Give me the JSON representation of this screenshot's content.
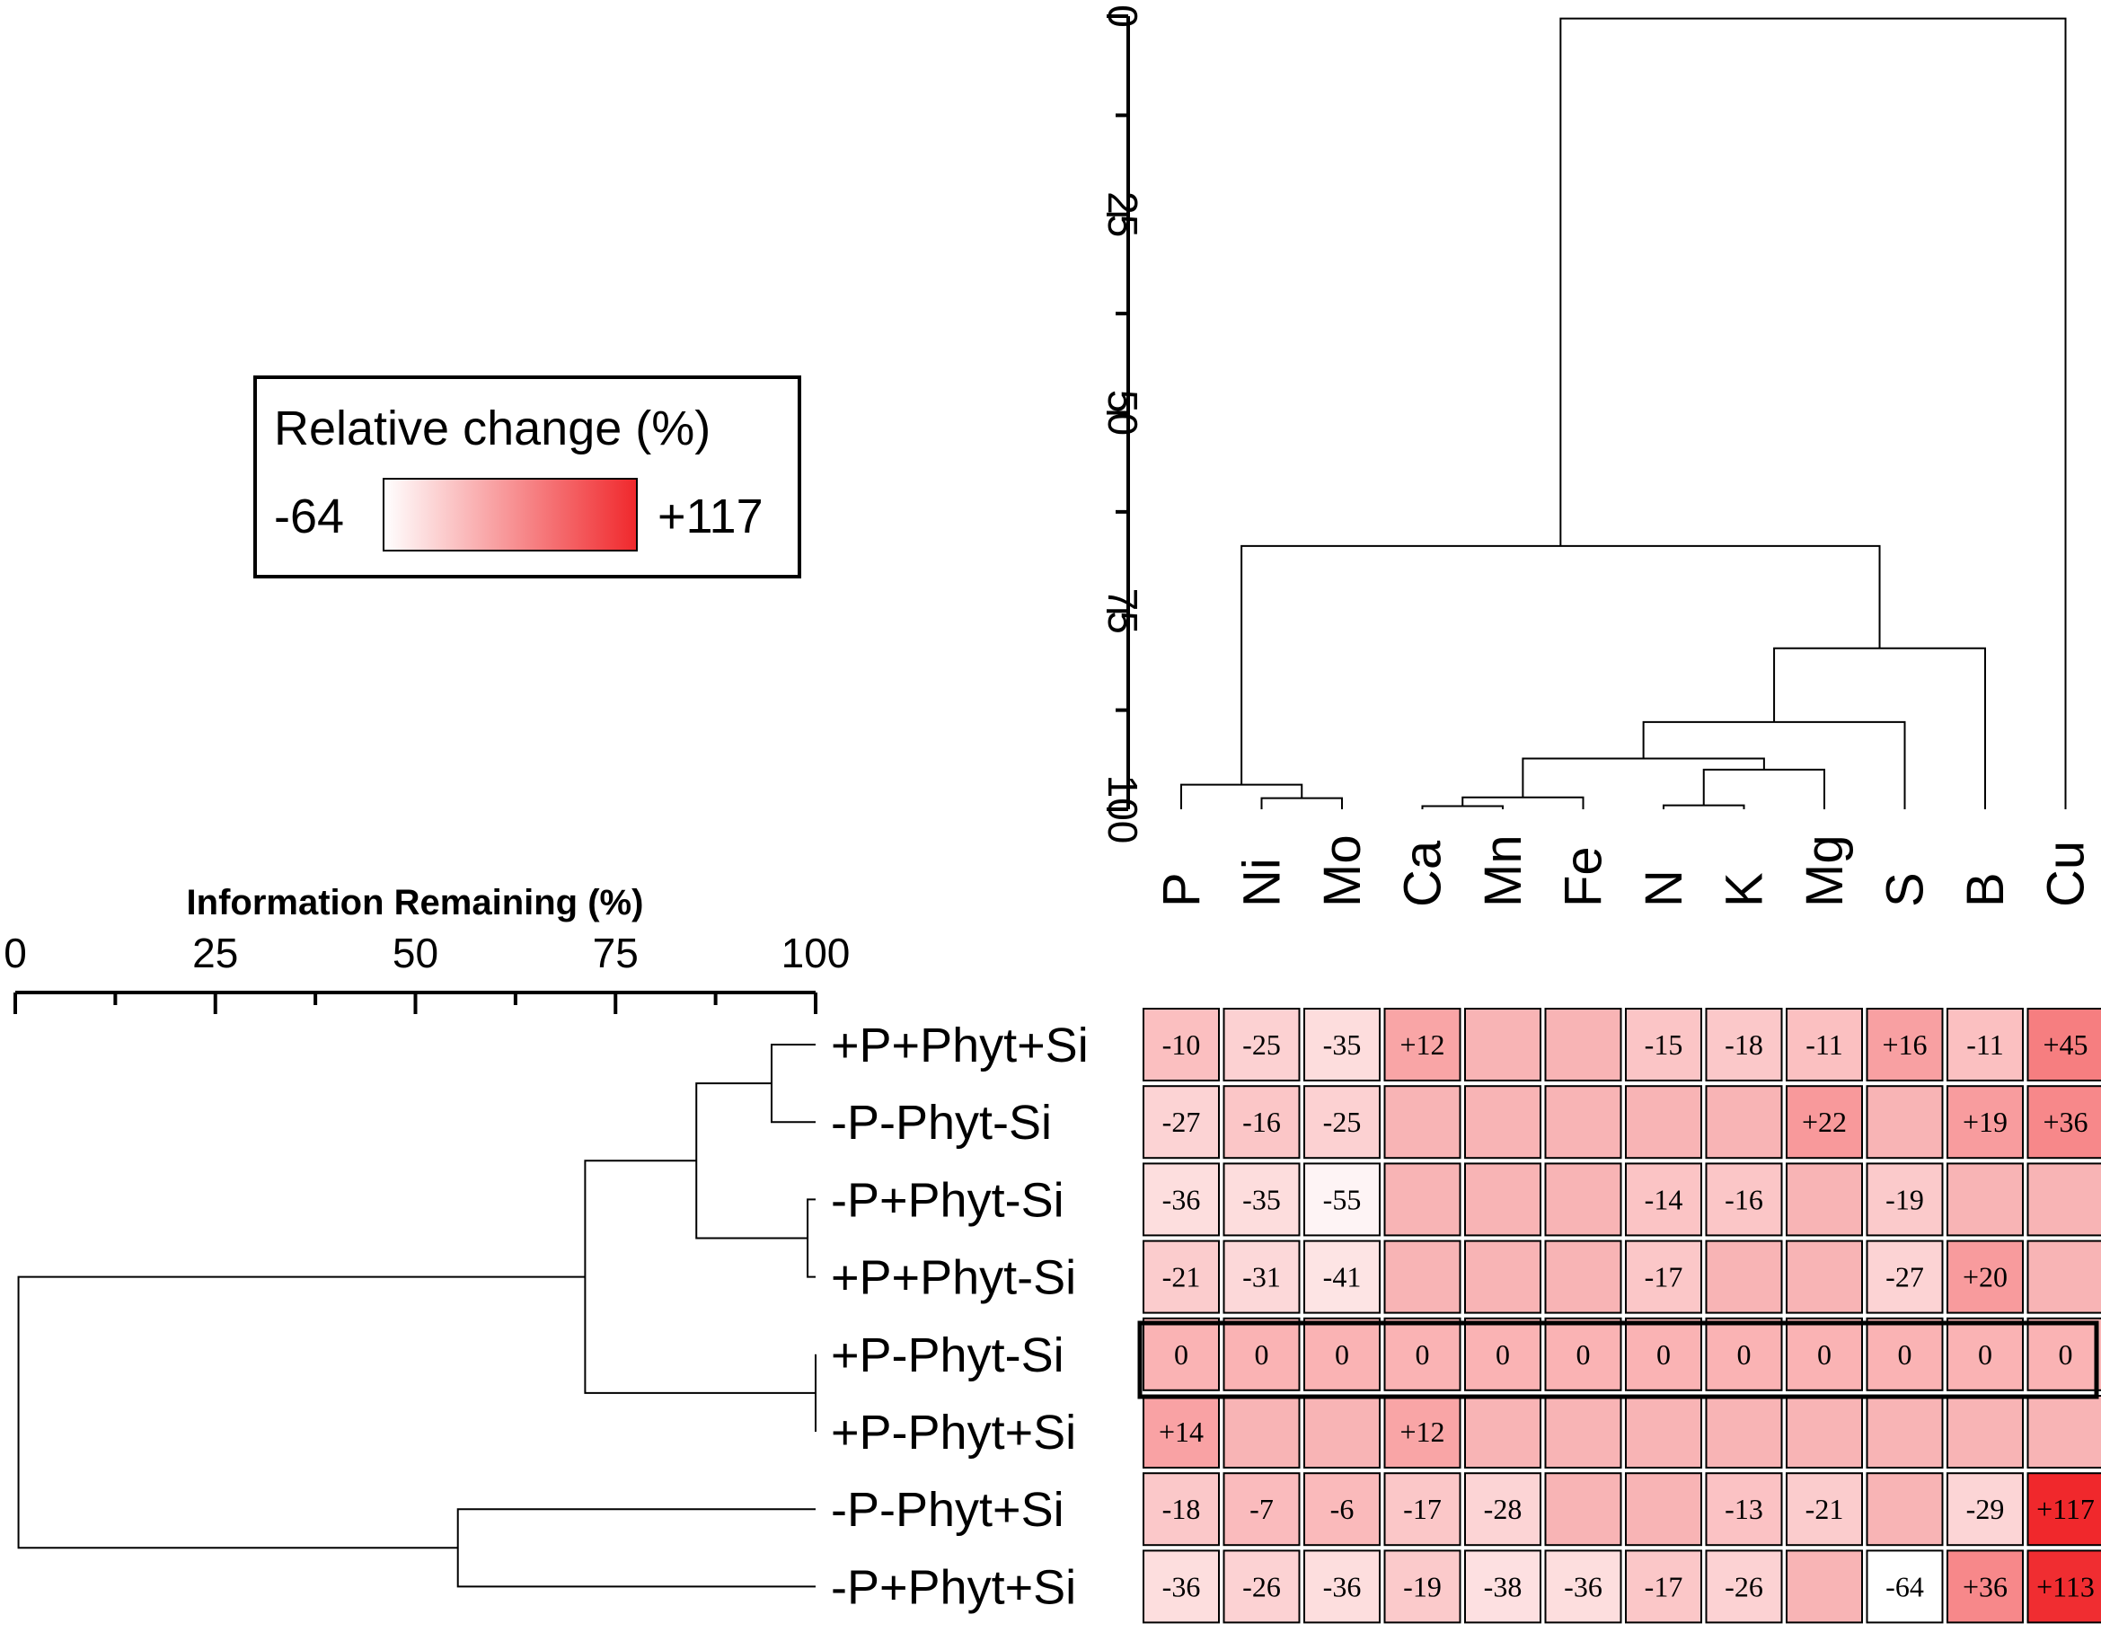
{
  "chart_data": {
    "type": "heatmap",
    "legend": {
      "title": "Relative change (%)",
      "min_label": "-64",
      "max_label": "+117",
      "min_value": -64,
      "max_value": 117,
      "color_low": "#ffffff",
      "color_high": "#f0282c"
    },
    "colors": {
      "no_label_fill": "#f8b4b5",
      "line": "#000000"
    },
    "columns": [
      "P",
      "Ni",
      "Mo",
      "Ca",
      "Mn",
      "Fe",
      "N",
      "K",
      "Mg",
      "S",
      "B",
      "Cu"
    ],
    "rows": [
      {
        "label": "+P+Phyt+Si",
        "cells": [
          "-10",
          "-25",
          "-35",
          "+12",
          "",
          "",
          "-15",
          "-18",
          "-11",
          "+16",
          "-11",
          "+45"
        ]
      },
      {
        "label": "-P-Phyt-Si",
        "cells": [
          "-27",
          "-16",
          "-25",
          "",
          "",
          "",
          "",
          "",
          "+22",
          "",
          "+19",
          "+36"
        ]
      },
      {
        "label": "-P+Phyt-Si",
        "cells": [
          "-36",
          "-35",
          "-55",
          "",
          "",
          "",
          "-14",
          "-16",
          "",
          "-19",
          "",
          ""
        ]
      },
      {
        "label": "+P+Phyt-Si",
        "cells": [
          "-21",
          "-31",
          "-41",
          "",
          "",
          "",
          "-17",
          "",
          "",
          "-27",
          "+20",
          ""
        ]
      },
      {
        "label": "+P-Phyt-Si",
        "cells": [
          "0",
          "0",
          "0",
          "0",
          "0",
          "0",
          "0",
          "0",
          "0",
          "0",
          "0",
          "0"
        ]
      },
      {
        "label": "+P-Phyt+Si",
        "cells": [
          "+14",
          "",
          "",
          "+12",
          "",
          "",
          "",
          "",
          "",
          "",
          "",
          ""
        ]
      },
      {
        "label": "-P-Phyt+Si",
        "cells": [
          "-18",
          "-7",
          "-6",
          "-17",
          "-28",
          "",
          "",
          "-13",
          "-21",
          "",
          "-29",
          "+117"
        ]
      },
      {
        "label": "-P+Phyt+Si",
        "cells": [
          "-36",
          "-26",
          "-36",
          "-19",
          "-38",
          "-36",
          "-17",
          "-26",
          "",
          "-64",
          "+36",
          "+113"
        ]
      }
    ],
    "reference_row": "+P-Phyt-Si",
    "column_dendrogram": {
      "axis_label": "",
      "axis_range": [
        0,
        100
      ],
      "ticks": [
        "0",
        "25",
        "50",
        "75",
        "100"
      ],
      "merges": [
        {
          "a": "Ca",
          "b": "Mn",
          "height": 99.6
        },
        {
          "a": "Ca|Mn",
          "b": "Fe",
          "height": 98.5
        },
        {
          "a": "Ni",
          "b": "Mo",
          "height": 98.6
        },
        {
          "a": "P",
          "b": "Ni|Mo",
          "height": 96.9
        },
        {
          "a": "N",
          "b": "K",
          "height": 99.5
        },
        {
          "a": "N|K",
          "b": "Mg",
          "height": 95.0
        },
        {
          "a": "Ca|Mn|Fe",
          "b": "N|K|Mg",
          "height": 93.6
        },
        {
          "a": "Ca|Mn|Fe|N|K|Mg",
          "b": "S",
          "height": 89.0
        },
        {
          "a": "Ca|Mn|Fe|N|K|Mg|S",
          "b": "B",
          "height": 79.7
        },
        {
          "a": "P|Ni|Mo",
          "b": "Ca|Mn|Fe|N|K|Mg|S|B",
          "height": 66.8
        },
        {
          "a": "P|Ni|Mo|Ca|Mn|Fe|N|K|Mg|S|B",
          "b": "Cu",
          "height": 0.3
        }
      ]
    },
    "row_dendrogram": {
      "axis_label": "Information Remaining (%)",
      "axis_range": [
        0,
        100
      ],
      "ticks": [
        "0",
        "25",
        "50",
        "75",
        "100"
      ],
      "merges": [
        {
          "a": "+P+Phyt+Si",
          "b": "-P-Phyt-Si",
          "height": 94.5
        },
        {
          "a": "-P+Phyt-Si",
          "b": "+P+Phyt-Si",
          "height": 99.0
        },
        {
          "a": "+P-Phyt-Si",
          "b": "+P-Phyt+Si",
          "height": 100
        },
        {
          "a": "+P+Phyt+Si|-P-Phyt-Si",
          "b": "-P+Phyt-Si|+P+Phyt-Si",
          "height": 85.1
        },
        {
          "a": "+P+Phyt+Si|-P-Phyt-Si|-P+Phyt-Si|+P+Phyt-Si",
          "b": "+P-Phyt-Si|+P-Phyt+Si",
          "height": 71.2
        },
        {
          "a": "-P-Phyt+Si",
          "b": "-P+Phyt+Si",
          "height": 55.3
        },
        {
          "a": "+P+Phyt+Si|-P-Phyt-Si|-P+Phyt-Si|+P+Phyt-Si|+P-Phyt-Si|+P-Phyt+Si",
          "b": "-P-Phyt+Si|-P+Phyt+Si",
          "height": 0.4
        }
      ]
    }
  }
}
